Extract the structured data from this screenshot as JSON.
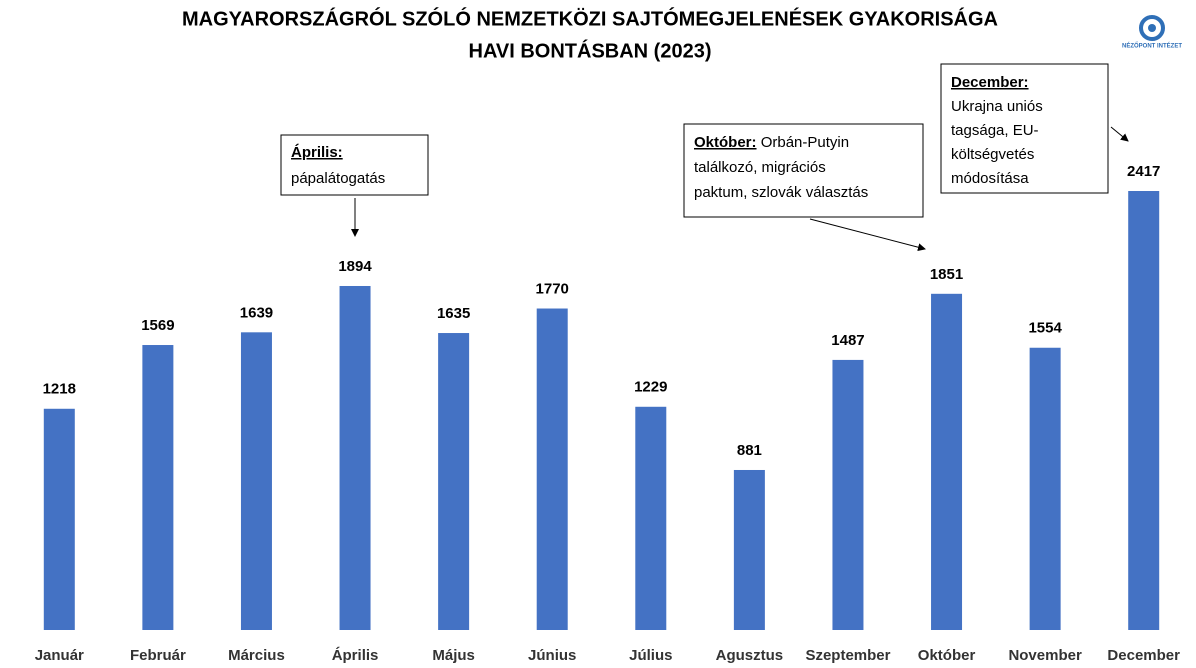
{
  "chart_data": {
    "type": "bar",
    "title": [
      "MAGYARORSZÁGRÓL SZÓLÓ NEMZETKÖZI SAJTÓMEGJELENÉSEK GYAKORISÁGA",
      "HAVI BONTÁSBAN (2023)"
    ],
    "categories": [
      "Január",
      "Február",
      "Március",
      "Április",
      "Május",
      "Június",
      "Július",
      "Agusztus",
      "Szeptember",
      "Október",
      "November",
      "December"
    ],
    "values": [
      1218,
      1569,
      1639,
      1894,
      1635,
      1770,
      1229,
      881,
      1487,
      1851,
      1554,
      2417
    ],
    "color": "#4472c4",
    "annotations": [
      {
        "heading": "Április:",
        "lines": [
          "pápalátogatás"
        ]
      },
      {
        "heading": "Október:",
        "lines": [
          "Orbán-Putyin",
          "találkozó, migrációs",
          "paktum, szlovák választás"
        ]
      },
      {
        "heading": "December:",
        "lines": [
          "Ukrajna uniós",
          "tagsága, EU-",
          "költségvetés",
          "módosítása"
        ]
      }
    ],
    "logo_text": "NÉZŐPONT INTÉZET"
  }
}
